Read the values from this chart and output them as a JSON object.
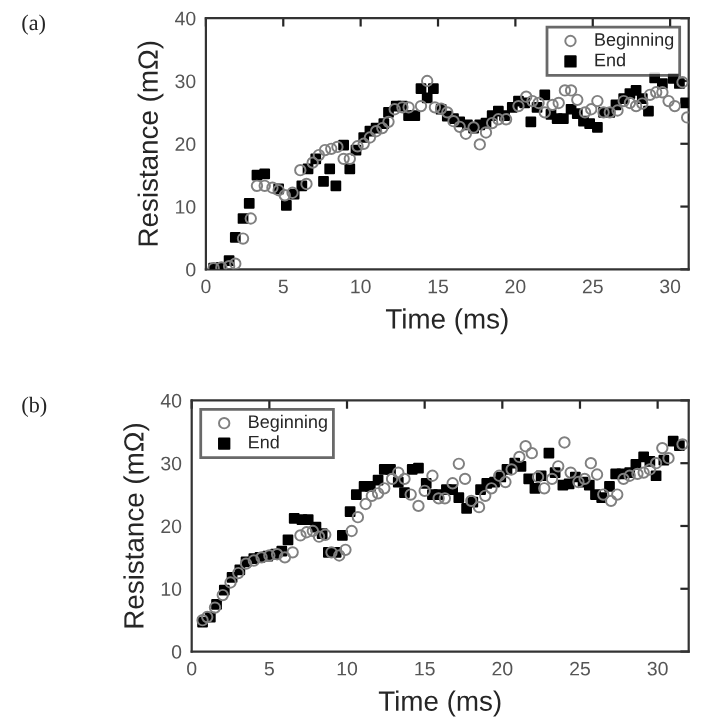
{
  "chart_data": [
    {
      "type": "scatter",
      "title": "(a)",
      "xlabel": "Time (ms)",
      "ylabel": "Resistance (mΩ)",
      "xlim": [
        0,
        31.2
      ],
      "ylim": [
        0,
        40
      ],
      "xticks": [
        0,
        5,
        10,
        15,
        20,
        25,
        30
      ],
      "yticks": [
        0,
        10,
        20,
        30,
        40
      ],
      "grid": false,
      "legend": "top right",
      "series": [
        {
          "name": "Beginning",
          "color": "#808080",
          "marker": "circle",
          "x": [
            0.5,
            1.0,
            1.5,
            1.9,
            2.4,
            2.9,
            3.3,
            3.8,
            4.3,
            4.7,
            5.1,
            5.6,
            6.1,
            6.5,
            6.9,
            7.3,
            7.7,
            8.1,
            8.5,
            8.9,
            9.3,
            9.8,
            10.2,
            10.6,
            11.0,
            11.4,
            11.8,
            12.2,
            12.7,
            13.1,
            13.9,
            14.3,
            14.8,
            15.2,
            15.6,
            16.0,
            16.4,
            16.8,
            17.3,
            17.7,
            18.1,
            18.5,
            18.9,
            19.4,
            20.2,
            20.7,
            21.1,
            21.5,
            21.9,
            22.4,
            22.8,
            23.2,
            23.6,
            24.0,
            24.5,
            24.9,
            25.3,
            25.7,
            26.1,
            26.6,
            27.0,
            27.4,
            27.8,
            28.2,
            28.7,
            29.1,
            29.5,
            29.9,
            30.3,
            30.8,
            31.1
          ],
          "values": [
            0.2,
            0.3,
            0.5,
            0.9,
            4.9,
            8.1,
            13.3,
            13.3,
            13.0,
            12.6,
            11.8,
            12.2,
            15.8,
            13.6,
            17.0,
            18.2,
            19.0,
            19.2,
            19.5,
            17.6,
            17.6,
            19.6,
            20.0,
            21.0,
            22.0,
            22.5,
            23.5,
            25.5,
            25.8,
            25.8,
            26.0,
            30.0,
            25.8,
            25.6,
            25.0,
            23.6,
            22.7,
            21.6,
            22.6,
            19.9,
            21.8,
            23.3,
            23.9,
            23.9,
            26.0,
            27.5,
            26.8,
            26.5,
            25.0,
            26.2,
            26.5,
            28.5,
            28.5,
            27.0,
            25.0,
            25.5,
            26.8,
            25.0,
            25.0,
            25.3,
            26.8,
            26.5,
            26.0,
            26.4,
            27.8,
            28.2,
            28.2,
            26.8,
            26.0,
            29.8,
            24.2
          ]
        },
        {
          "name": "End",
          "color": "#000000",
          "marker": "square",
          "x": [
            0.5,
            1.0,
            1.5,
            1.9,
            2.4,
            2.8,
            3.3,
            3.8,
            4.7,
            5.2,
            5.7,
            6.2,
            6.6,
            7.1,
            7.6,
            8.0,
            8.4,
            8.9,
            9.3,
            9.7,
            10.2,
            10.6,
            11.0,
            11.5,
            11.8,
            12.3,
            12.7,
            13.1,
            13.5,
            13.9,
            14.3,
            14.7,
            15.2,
            15.6,
            16.0,
            16.4,
            16.9,
            17.3,
            17.7,
            18.1,
            18.5,
            18.9,
            19.3,
            19.8,
            20.2,
            20.6,
            21.0,
            21.4,
            21.9,
            22.3,
            22.7,
            23.1,
            23.6,
            24.0,
            24.4,
            24.8,
            25.3,
            25.7,
            26.1,
            26.5,
            27.0,
            27.4,
            27.8,
            28.2,
            28.6,
            29.0,
            29.5,
            30.2,
            30.6,
            31.0
          ],
          "values": [
            0.2,
            0.3,
            1.4,
            5.1,
            8.1,
            10.5,
            15.0,
            15.2,
            12.8,
            10.2,
            12.0,
            13.3,
            16.0,
            17.6,
            14.0,
            16.0,
            13.3,
            19.8,
            16.0,
            19.0,
            21.0,
            22.0,
            22.5,
            23.2,
            25.0,
            26.0,
            26.0,
            24.5,
            24.5,
            28.8,
            27.3,
            28.8,
            25.5,
            24.4,
            24.0,
            23.5,
            23.0,
            22.5,
            23.0,
            23.3,
            24.5,
            25.2,
            24.5,
            25.8,
            26.8,
            26.5,
            23.5,
            25.8,
            27.8,
            24.7,
            24.0,
            24.0,
            25.5,
            24.8,
            23.6,
            23.2,
            22.6,
            25.0,
            25.0,
            26.2,
            27.2,
            28.0,
            28.5,
            27.2,
            25.2,
            30.5,
            29.6,
            30.4,
            29.6,
            26.5
          ]
        }
      ]
    },
    {
      "type": "scatter",
      "title": "(b)",
      "xlabel": "Time (ms)",
      "ylabel": "Resistance (mΩ)",
      "xlim": [
        0,
        32
      ],
      "ylim": [
        0,
        40
      ],
      "xticks": [
        0,
        5,
        10,
        15,
        20,
        25,
        30
      ],
      "yticks": [
        0,
        10,
        20,
        30,
        40
      ],
      "grid": false,
      "legend": "top left",
      "series": [
        {
          "name": "Beginning",
          "color": "#808080",
          "marker": "circle",
          "x": [
            0.7,
            1.0,
            1.5,
            2.0,
            2.5,
            3.0,
            3.5,
            4.0,
            4.5,
            5.0,
            5.5,
            6.0,
            6.5,
            7.0,
            7.4,
            7.8,
            8.2,
            8.6,
            9.0,
            9.5,
            9.9,
            10.3,
            10.7,
            11.2,
            11.6,
            12.0,
            12.4,
            12.9,
            13.3,
            13.7,
            14.1,
            14.6,
            15.0,
            15.5,
            15.9,
            16.3,
            16.8,
            17.2,
            17.6,
            18.0,
            18.5,
            18.9,
            19.3,
            19.8,
            20.2,
            20.6,
            21.1,
            21.5,
            21.9,
            22.3,
            22.7,
            23.2,
            23.6,
            24.0,
            24.4,
            24.9,
            25.3,
            25.7,
            26.1,
            26.5,
            27.0,
            27.4,
            27.8,
            28.2,
            28.7,
            29.1,
            29.5,
            29.9,
            30.3,
            30.7,
            31.6
          ],
          "values": [
            5.0,
            5.5,
            7.0,
            9.0,
            11.0,
            12.5,
            14.0,
            14.5,
            15.0,
            15.3,
            15.5,
            15.0,
            15.8,
            18.5,
            19.0,
            19.2,
            18.3,
            18.6,
            15.8,
            15.3,
            16.2,
            19.2,
            21.4,
            23.5,
            24.8,
            25.2,
            26.0,
            27.5,
            28.5,
            27.5,
            25.0,
            23.2,
            25.6,
            28.0,
            24.4,
            24.4,
            26.8,
            29.9,
            27.5,
            24.0,
            23.0,
            24.8,
            26.0,
            28.0,
            27.0,
            29.0,
            31.0,
            32.7,
            31.6,
            27.8,
            26.0,
            27.5,
            29.5,
            33.3,
            28.5,
            27.0,
            27.5,
            30.0,
            28.2,
            25.0,
            24.0,
            25.0,
            27.5,
            28.0,
            28.3,
            28.5,
            29.0,
            30.0,
            32.4,
            30.8,
            33.0
          ]
        },
        {
          "name": "End",
          "color": "#000000",
          "marker": "square",
          "x": [
            0.7,
            1.2,
            1.6,
            2.1,
            2.6,
            3.1,
            3.5,
            4.0,
            4.4,
            4.9,
            5.4,
            5.8,
            6.2,
            6.6,
            7.1,
            7.5,
            8.0,
            8.4,
            8.8,
            9.3,
            9.7,
            10.2,
            10.6,
            11.1,
            11.5,
            12.0,
            12.4,
            12.8,
            13.3,
            13.7,
            14.2,
            14.6,
            15.1,
            15.5,
            15.9,
            16.4,
            16.8,
            17.2,
            17.7,
            18.1,
            18.6,
            19.0,
            19.5,
            19.9,
            20.3,
            20.8,
            21.2,
            21.7,
            22.1,
            22.5,
            23.0,
            23.4,
            23.9,
            24.3,
            24.7,
            25.2,
            25.6,
            26.0,
            26.4,
            26.9,
            27.3,
            27.7,
            28.2,
            28.6,
            29.1,
            29.5,
            29.9,
            30.4,
            31.0,
            31.4
          ],
          "values": [
            4.7,
            5.5,
            7.5,
            9.8,
            11.8,
            13.0,
            14.3,
            14.8,
            15.0,
            15.2,
            15.5,
            16.0,
            17.8,
            21.2,
            21.0,
            21.0,
            19.8,
            18.8,
            15.8,
            15.8,
            18.5,
            22.3,
            25.0,
            26.3,
            26.3,
            27.3,
            29.0,
            29.0,
            27.0,
            25.3,
            29.0,
            29.2,
            26.8,
            25.0,
            25.0,
            25.8,
            25.8,
            24.5,
            22.8,
            23.8,
            25.8,
            26.8,
            27.0,
            27.8,
            29.0,
            30.0,
            29.5,
            27.5,
            26.0,
            28.0,
            31.6,
            28.5,
            26.5,
            26.7,
            27.8,
            27.0,
            26.5,
            25.0,
            24.5,
            26.3,
            28.3,
            28.3,
            28.5,
            29.8,
            31.0,
            30.3,
            28.0,
            30.5,
            33.5,
            32.8
          ]
        }
      ]
    }
  ]
}
